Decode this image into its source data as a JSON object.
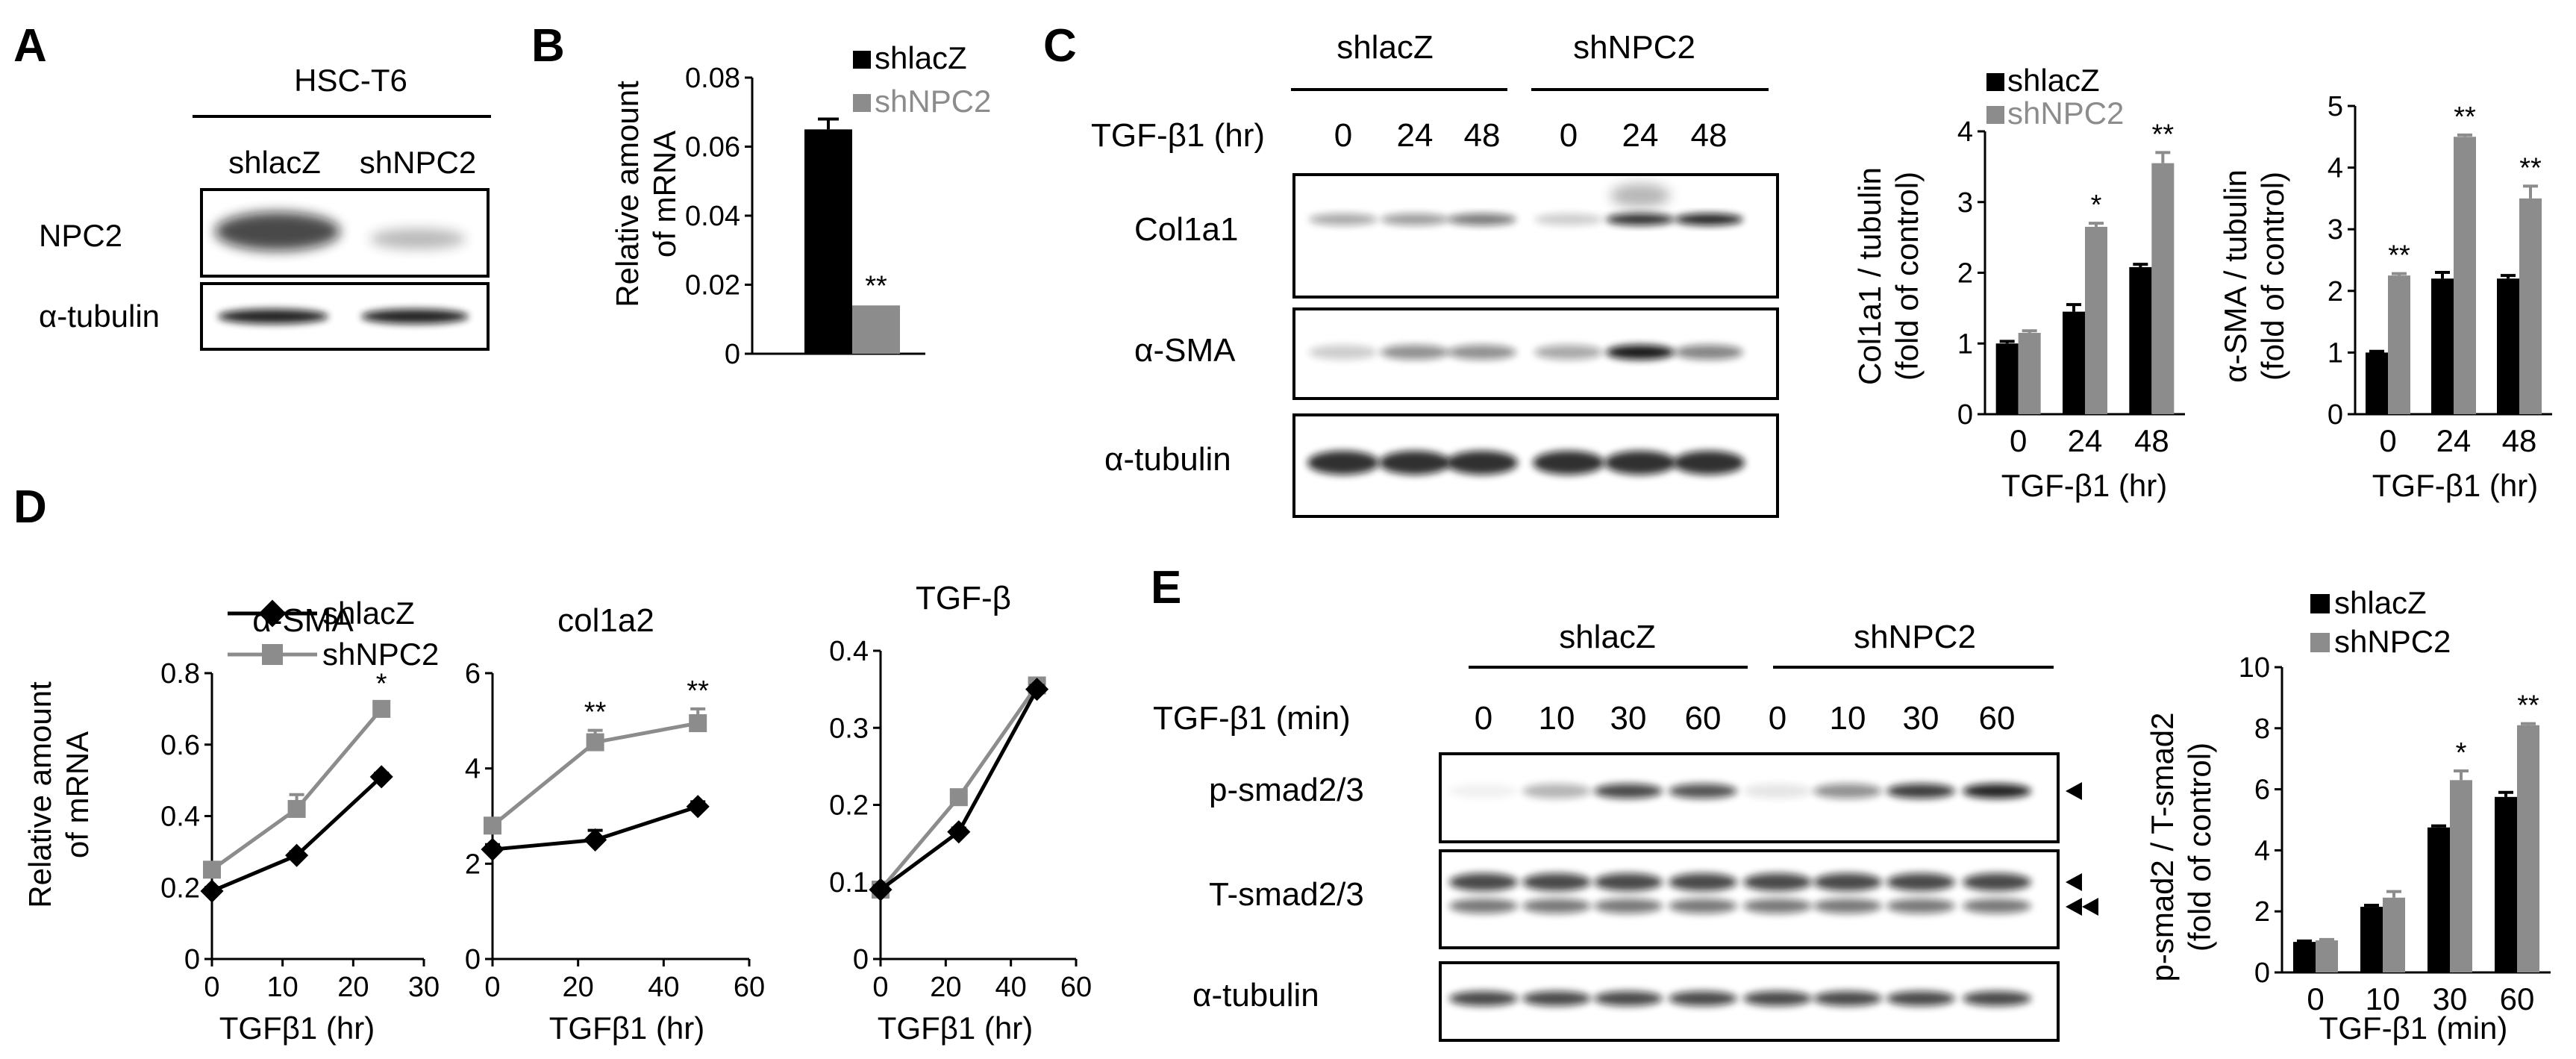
{
  "panelA": {
    "letter": "A",
    "cell_line": "HSC-T6",
    "lanes": [
      "shlacZ",
      "shNPC2"
    ],
    "rows": [
      "NPC2",
      "α-tubulin"
    ]
  },
  "panelB": {
    "letter": "B",
    "ylabel_line1": "Relative  amount",
    "ylabel_line2": "of mRNA",
    "legend": [
      "shlacZ",
      "shNPC2"
    ],
    "sig": "**",
    "chart_data": {
      "type": "bar",
      "categories": [
        "shlacZ",
        "shNPC2"
      ],
      "values": [
        0.065,
        0.014
      ],
      "errors": [
        0.003,
        0.0005
      ],
      "ylim": [
        0,
        0.08
      ],
      "yticks": [
        "0",
        "0.02",
        "0.04",
        "0.06",
        "0.08"
      ],
      "colors": [
        "#000000",
        "#8c8c8c"
      ]
    }
  },
  "panelC": {
    "letter": "C",
    "groups": [
      "shlacZ",
      "shNPC2"
    ],
    "treatment": "TGF-β1 (hr)",
    "times": [
      "0",
      "24",
      "48",
      "0",
      "24",
      "48"
    ],
    "rows": [
      "Col1a1",
      "α-SMA",
      "α-tubulin"
    ],
    "chart1": {
      "ylabel_line1": "Col1a1 / tubulin",
      "ylabel_line2": "(fold of control)",
      "xlabel": "TGF-β1  (hr)",
      "legend": [
        "shlacZ",
        "shNPC2"
      ],
      "chart_data": {
        "type": "bar",
        "categories": [
          "0",
          "24",
          "48"
        ],
        "series": [
          {
            "name": "shlacZ",
            "values": [
              1.0,
              1.45,
              2.08
            ],
            "errors": [
              0.03,
              0.1,
              0.04
            ]
          },
          {
            "name": "shNPC2",
            "values": [
              1.15,
              2.65,
              3.55
            ],
            "errors": [
              0.03,
              0.05,
              0.15
            ]
          }
        ],
        "sig": [
          "",
          "*",
          "**"
        ],
        "ylim": [
          0,
          4
        ],
        "yticks": [
          "0",
          "1",
          "2",
          "3",
          "4"
        ]
      }
    },
    "chart2": {
      "ylabel_line1": "α-SMA / tubulin",
      "ylabel_line2": "(fold of control)",
      "xlabel": "TGF-β1  (hr)",
      "chart_data": {
        "type": "bar",
        "categories": [
          "0",
          "24",
          "48"
        ],
        "series": [
          {
            "name": "shlacZ",
            "values": [
              1.0,
              2.2,
              2.2
            ],
            "errors": [
              0.02,
              0.1,
              0.05
            ]
          },
          {
            "name": "shNPC2",
            "values": [
              2.25,
              4.5,
              3.5
            ],
            "errors": [
              0.03,
              0.03,
              0.2
            ]
          }
        ],
        "sig": [
          "**",
          "**",
          "**"
        ],
        "ylim": [
          0,
          5
        ],
        "yticks": [
          "0",
          "1",
          "2",
          "3",
          "4",
          "5"
        ]
      }
    }
  },
  "panelD": {
    "letter": "D",
    "ylabel_line1": "Relative  amount",
    "ylabel_line2": "of mRNA",
    "xlabel": "TGFβ1  (hr)",
    "legend": [
      "shlacZ",
      "shNPC2"
    ],
    "chart_data": [
      {
        "type": "line",
        "title": "α-SMA",
        "xlim": [
          0,
          30
        ],
        "xticks": [
          "0",
          "10",
          "20",
          "30"
        ],
        "ylim": [
          0,
          0.8
        ],
        "yticks": [
          "0",
          "0.2",
          "0.4",
          "0.6",
          "0.8"
        ],
        "x": [
          0,
          12,
          24
        ],
        "series": [
          {
            "name": "shlacZ",
            "values": [
              0.19,
              0.29,
              0.51
            ],
            "errors": [
              0.01,
              0.01,
              0.01
            ]
          },
          {
            "name": "shNPC2",
            "values": [
              0.25,
              0.42,
              0.7
            ],
            "errors": [
              0.02,
              0.04,
              0.02
            ]
          }
        ],
        "sig": [
          "",
          "",
          "*"
        ]
      },
      {
        "type": "line",
        "title": "col1a2",
        "xlim": [
          0,
          60
        ],
        "xticks": [
          "0",
          "20",
          "40",
          "60"
        ],
        "ylim": [
          0,
          6
        ],
        "yticks": [
          "0",
          "2",
          "4",
          "6"
        ],
        "x": [
          0,
          24,
          48
        ],
        "series": [
          {
            "name": "shlacZ",
            "values": [
              2.3,
              2.5,
              3.2
            ],
            "errors": [
              0.1,
              0.2,
              0.1
            ]
          },
          {
            "name": "shNPC2",
            "values": [
              2.8,
              4.55,
              4.95
            ],
            "errors": [
              0.1,
              0.25,
              0.3
            ]
          }
        ],
        "sig": [
          "",
          "**",
          "**"
        ]
      },
      {
        "type": "line",
        "title": "TGF-β",
        "xlim": [
          0,
          60
        ],
        "xticks": [
          "0",
          "20",
          "40",
          "60"
        ],
        "ylim": [
          0,
          0.4
        ],
        "yticks": [
          "0",
          "0.1",
          "0.2",
          "0.3",
          "0.4"
        ],
        "x": [
          0,
          24,
          48
        ],
        "series": [
          {
            "name": "shlacZ",
            "values": [
              0.09,
              0.165,
              0.35
            ],
            "errors": [
              0.005,
              0.005,
              0.005
            ]
          },
          {
            "name": "shNPC2",
            "values": [
              0.09,
              0.21,
              0.355
            ],
            "errors": [
              0.005,
              0.005,
              0.005
            ]
          }
        ],
        "sig": [
          "",
          "",
          ""
        ]
      }
    ]
  },
  "panelE": {
    "letter": "E",
    "groups": [
      "shlacZ",
      "shNPC2"
    ],
    "treatment": "TGF-β1 (min)",
    "times": [
      "0",
      "10",
      "30",
      "60",
      "0",
      "10",
      "30",
      "60"
    ],
    "rows": [
      "p-smad2/3",
      "T-smad2/3",
      "α-tubulin"
    ],
    "chart": {
      "ylabel_line1": "p-smad2 / T-smad2",
      "ylabel_line2": "(fold of control)",
      "xlabel": "TGF-β1  (min)",
      "legend": [
        "shlacZ",
        "shNPC2"
      ],
      "chart_data": {
        "type": "bar",
        "categories": [
          "0",
          "10",
          "30",
          "60"
        ],
        "series": [
          {
            "name": "shlacZ",
            "values": [
              1.0,
              2.15,
              4.75,
              5.75
            ],
            "errors": [
              0.03,
              0.05,
              0.05,
              0.15
            ]
          },
          {
            "name": "shNPC2",
            "values": [
              1.05,
              2.45,
              6.3,
              8.1
            ],
            "errors": [
              0.03,
              0.2,
              0.3,
              0.05
            ]
          }
        ],
        "sig": [
          "",
          "",
          "*",
          "**"
        ],
        "ylim": [
          0,
          10
        ],
        "yticks": [
          "0",
          "2",
          "4",
          "6",
          "8",
          "10"
        ]
      }
    }
  },
  "colors": {
    "shlacZ": "#000000",
    "shNPC2": "#8c8c8c"
  }
}
